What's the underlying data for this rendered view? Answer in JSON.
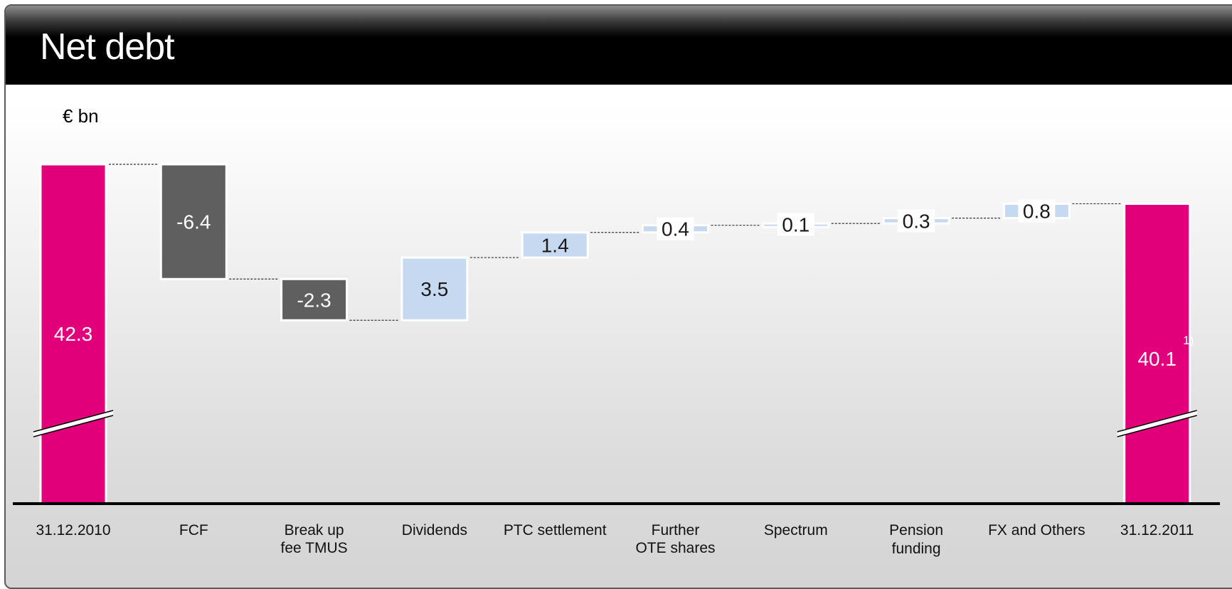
{
  "slide": {
    "title": "Net debt",
    "unit": "€ bn"
  },
  "colors": {
    "total": "#e2007a",
    "decrease": "#5f5f5f",
    "increase": "#c6d9f1",
    "title_bar": "#000000",
    "connector": "#333333"
  },
  "chart_data": {
    "type": "bar",
    "subtype": "waterfall",
    "categories": [
      "31.12.2010",
      "FCF",
      "Break up\nfee TMUS",
      "Dividends",
      "PTC settlement",
      "Further\nOTE shares",
      "Spectrum",
      "Pension\nfunding",
      "FX and Others",
      "31.12.2011"
    ],
    "values": [
      42.3,
      -6.4,
      -2.3,
      3.5,
      1.4,
      0.4,
      0.1,
      0.3,
      0.8,
      40.1
    ],
    "value_labels": [
      "42.3",
      "-6.4",
      "-2.3",
      "3.5",
      "1.4",
      "0.4",
      "0.1",
      "0.3",
      "0.8",
      "40.1"
    ],
    "measure": [
      "total",
      "relative",
      "relative",
      "relative",
      "relative",
      "relative",
      "relative",
      "relative",
      "relative",
      "total"
    ],
    "footnote_marks": {
      "31.12.2011": "1)"
    },
    "axis_break": true,
    "ylabel": "€ bn",
    "legend": "none",
    "grid": false
  }
}
